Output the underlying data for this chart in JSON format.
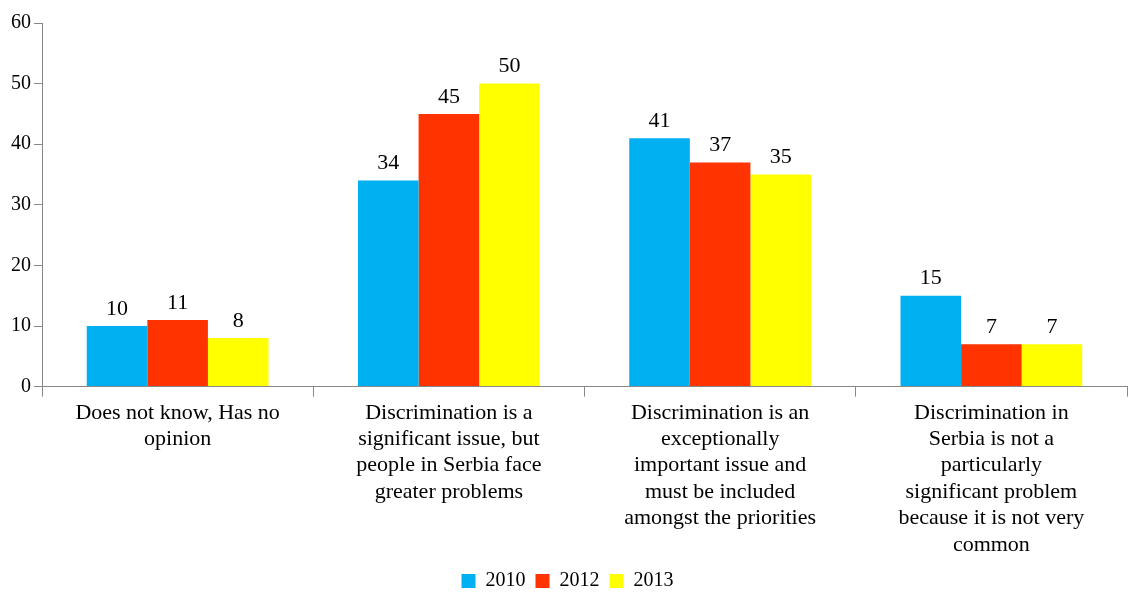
{
  "chart_data": {
    "type": "bar",
    "categories": [
      "Does not know, Has no opinion",
      "Discrimination is a significant issue, but people in Serbia face greater problems",
      "Discrimination is an exceptionally important issue and must be included amongst the priorities",
      "Discrimination in Serbia is not a particularly significant problem because it is not very common"
    ],
    "series": [
      {
        "name": "2010",
        "color": "#00b0f0",
        "values": [
          10,
          34,
          41,
          15
        ]
      },
      {
        "name": "2012",
        "color": "#ff3300",
        "values": [
          11,
          45,
          37,
          7
        ]
      },
      {
        "name": "2013",
        "color": "#ffff00",
        "values": [
          8,
          50,
          35,
          7
        ]
      }
    ],
    "ylim": [
      0,
      60
    ],
    "yticks": [
      0,
      10,
      20,
      30,
      40,
      50,
      60
    ],
    "grid": false,
    "legend": "bottom",
    "data_labels": true
  }
}
